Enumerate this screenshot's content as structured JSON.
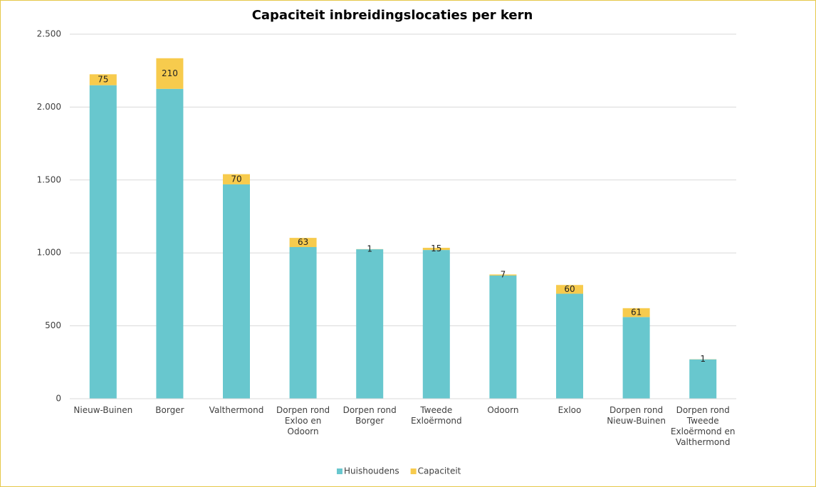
{
  "chart_data": {
    "type": "stacked_bar",
    "title": "Capaciteit inbreidingslocaties per kern",
    "categories": [
      "Nieuw-Buinen",
      "Borger",
      "Valthermond",
      "Dorpen rond Exloo en Odoorn",
      "Dorpen rond Borger",
      "Tweede Exloërmond",
      "Odoorn",
      "Exloo",
      "Dorpen rond Nieuw-Buinen",
      "Dorpen rond Tweede Exloërmond en Valthermond"
    ],
    "series": [
      {
        "name": "Huishoudens",
        "color": "#68c7ce",
        "values": [
          2150,
          2125,
          1470,
          1040,
          1025,
          1020,
          845,
          720,
          560,
          270
        ]
      },
      {
        "name": "Capaciteit",
        "color": "#f7cb4d",
        "values": [
          75,
          210,
          70,
          63,
          1,
          15,
          7,
          60,
          61,
          1
        ],
        "data_labels": true
      }
    ],
    "ylim": [
      0,
      2500
    ],
    "yticks": [
      0,
      500,
      {
        "value": 1000,
        "label": "1.000"
      },
      {
        "value": 1500,
        "label": "1.500"
      },
      {
        "value": 2000,
        "label": "2.000"
      },
      {
        "value": 2500,
        "label": "2.500"
      }
    ],
    "grid": true,
    "legend": "bottom"
  }
}
